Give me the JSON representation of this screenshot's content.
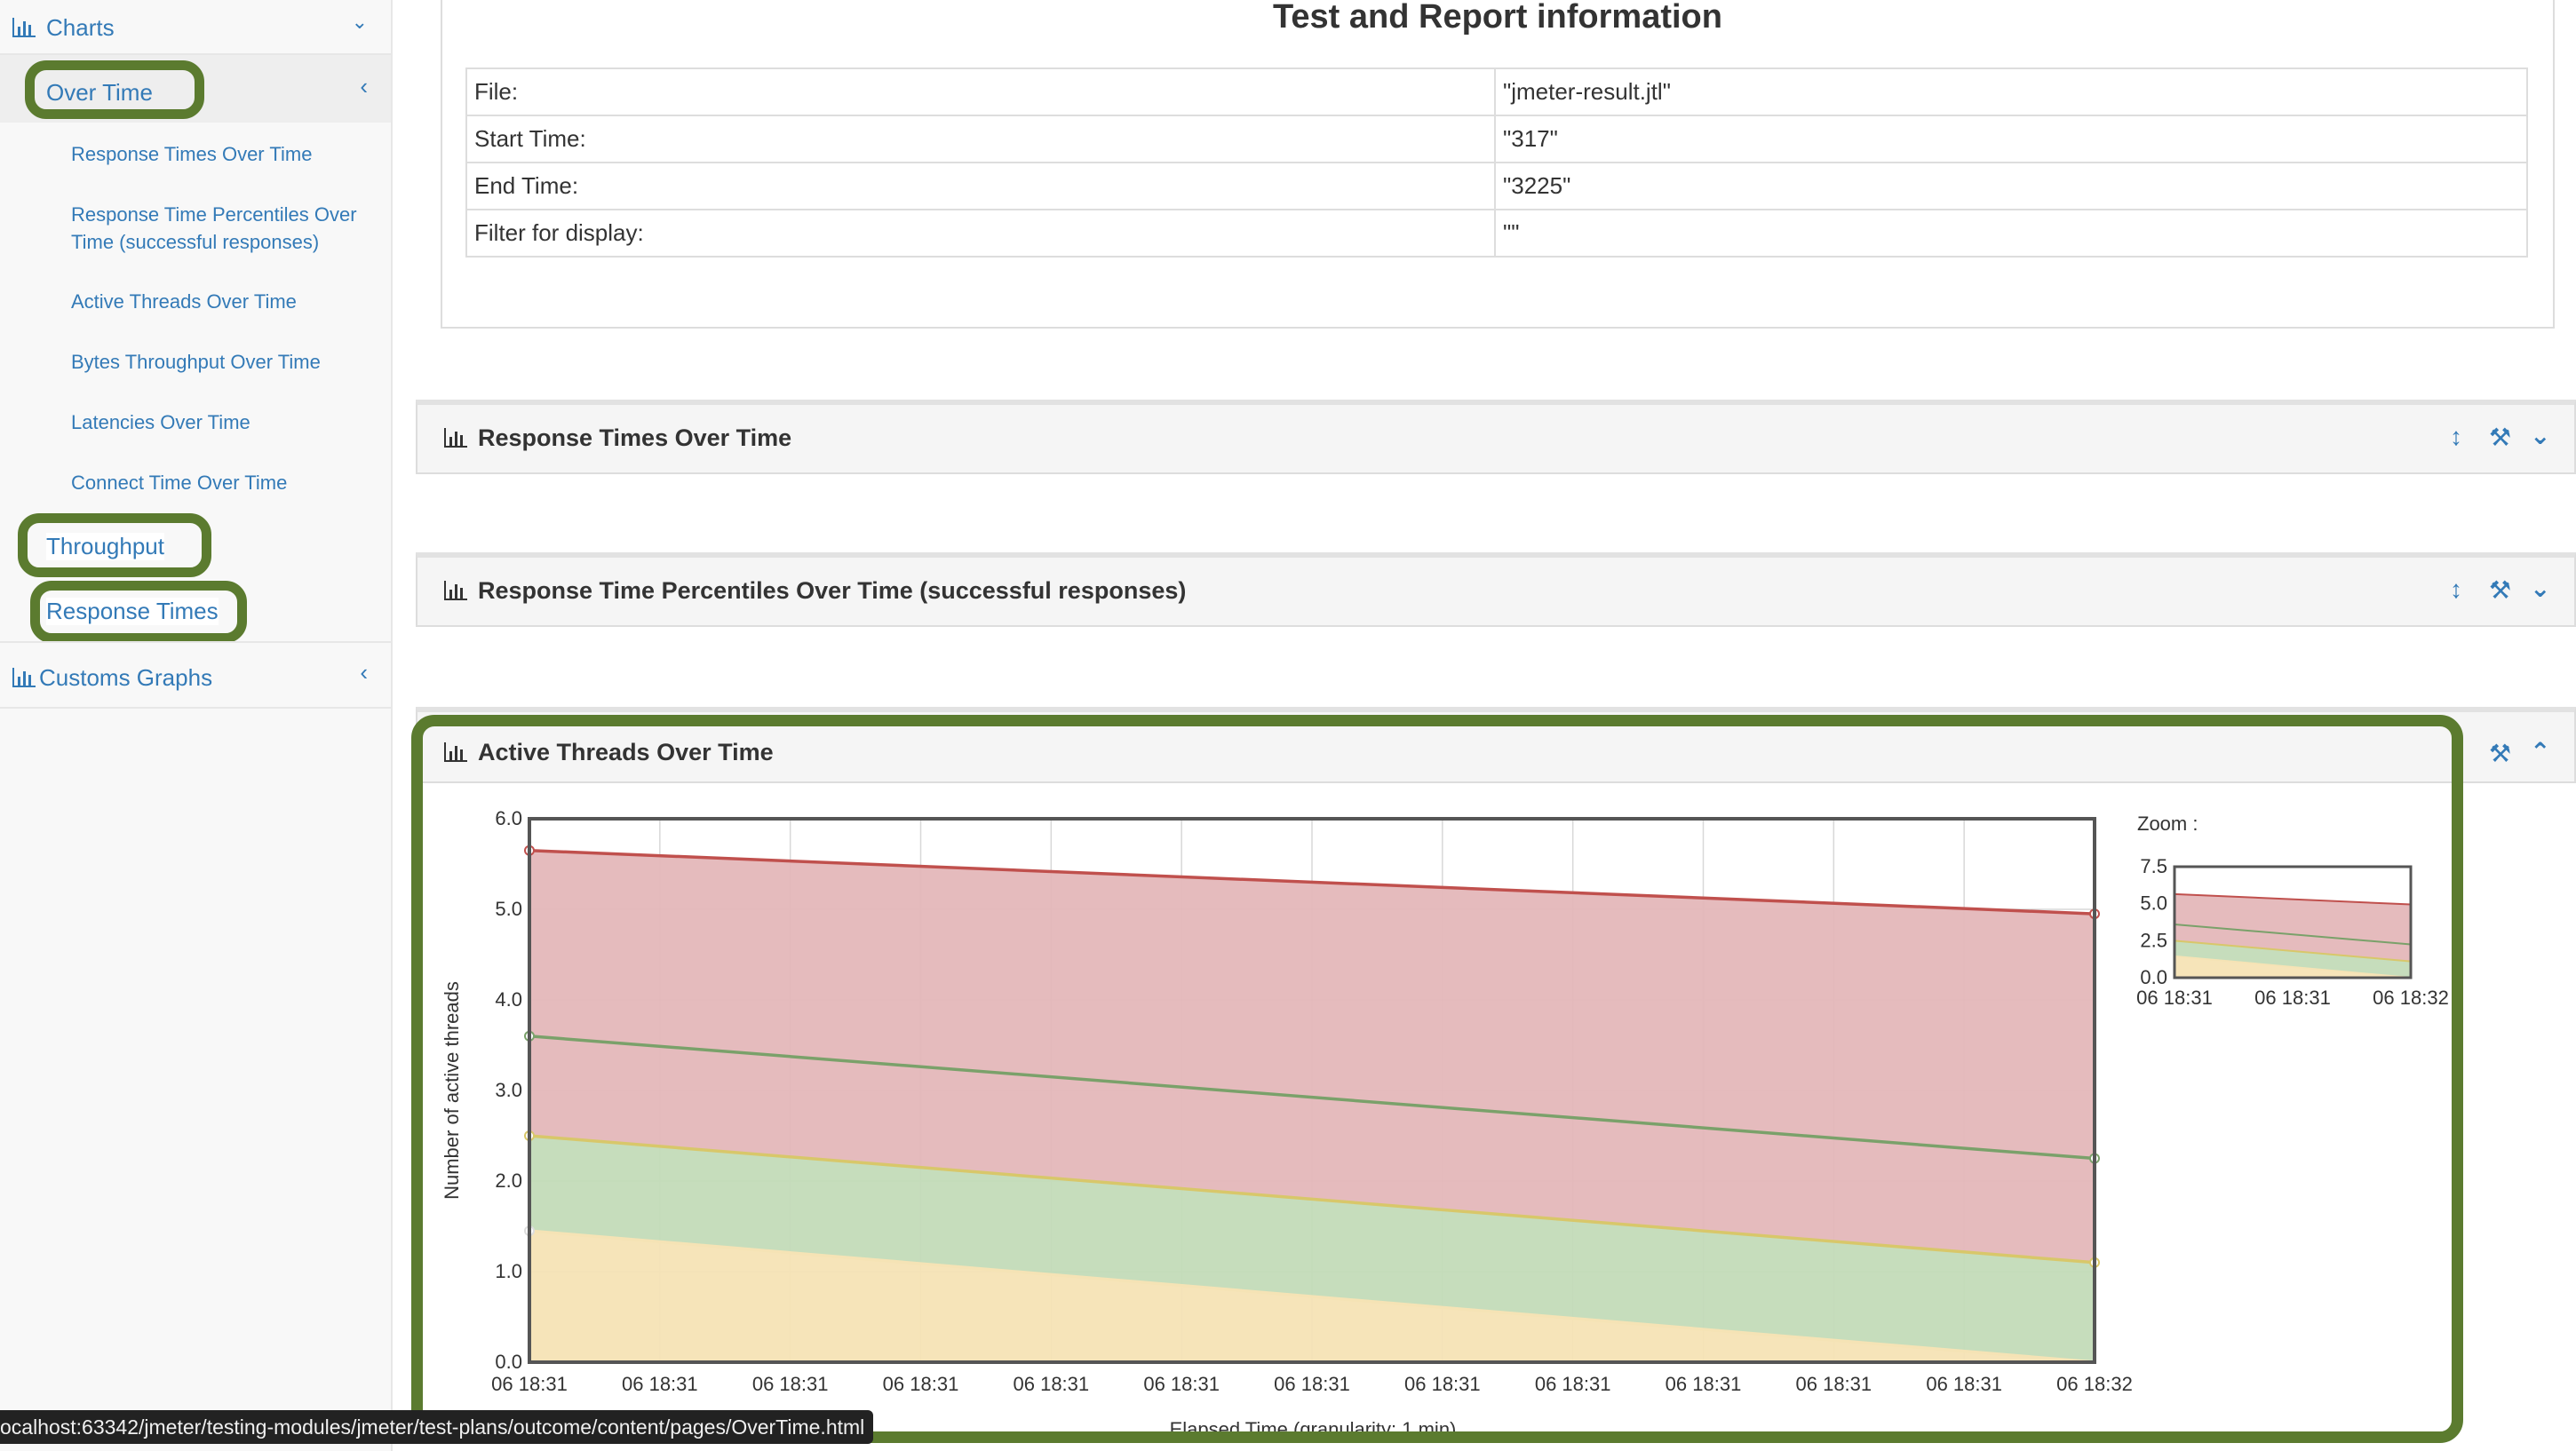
{
  "sidebar": {
    "charts_label": "Charts",
    "over_time_label": "Over Time",
    "sub_items": [
      "Response Times Over Time",
      "Response Time Percentiles Over Time (successful responses)",
      "Active Threads Over Time",
      "Bytes Throughput Over Time",
      "Latencies Over Time",
      "Connect Time Over Time"
    ],
    "throughput_label": "Throughput",
    "response_times_label": "Response Times",
    "custom_graphs_label": "Customs Graphs"
  },
  "info": {
    "title": "Test and Report information",
    "rows": [
      {
        "label": "File:",
        "value": "\"jmeter-result.jtl\""
      },
      {
        "label": "Start Time:",
        "value": "\"317\""
      },
      {
        "label": "End Time:",
        "value": "\"3225\""
      },
      {
        "label": "Filter for display:",
        "value": "\"\""
      }
    ]
  },
  "panels": {
    "response_times": "Response Times Over Time",
    "percentiles": "Response Time Percentiles Over Time (successful responses)",
    "active_threads": "Active Threads Over Time"
  },
  "chart_data": {
    "type": "area",
    "title": "",
    "xlabel": "Elapsed Time (granularity: 1 min)",
    "ylabel": "Number of active threads",
    "ylim": [
      0,
      6
    ],
    "yticks": [
      "0.0",
      "1.0",
      "2.0",
      "3.0",
      "4.0",
      "5.0",
      "6.0"
    ],
    "xticks": [
      "06 18:31",
      "06 18:31",
      "06 18:31",
      "06 18:31",
      "06 18:31",
      "06 18:31",
      "06 18:31",
      "06 18:31",
      "06 18:31",
      "06 18:31",
      "06 18:31",
      "06 18:31",
      "06 18:32"
    ],
    "grid": true,
    "stacked": true,
    "series": [
      {
        "color": "#f5e3b5",
        "line": "#f5e3b5",
        "values": [
          1.45,
          0.0
        ]
      },
      {
        "color": "#c3dbb8",
        "line": "#d8c76a",
        "values": [
          1.05,
          1.1
        ]
      },
      {
        "color": "#e4b7b9",
        "line": "#7aa16a",
        "values": [
          1.1,
          1.15
        ]
      },
      {
        "color": "#e4b7b9",
        "line": "#c0504d",
        "values": [
          2.05,
          2.7
        ]
      }
    ],
    "cumulative": [
      [
        1.45,
        2.5,
        3.6,
        5.65
      ],
      [
        0.0,
        1.1,
        2.25,
        4.95
      ]
    ],
    "zoom": {
      "label": "Zoom :",
      "yticks": [
        "0.0",
        "2.5",
        "5.0",
        "7.5"
      ],
      "xticks": [
        "06 18:31",
        "06 18:31",
        "06 18:32"
      ],
      "ylim": [
        0,
        7.5
      ]
    }
  },
  "status_bar": "ocalhost:63342/jmeter/testing-modules/jmeter/test-plans/outcome/content/pages/OverTime.html"
}
